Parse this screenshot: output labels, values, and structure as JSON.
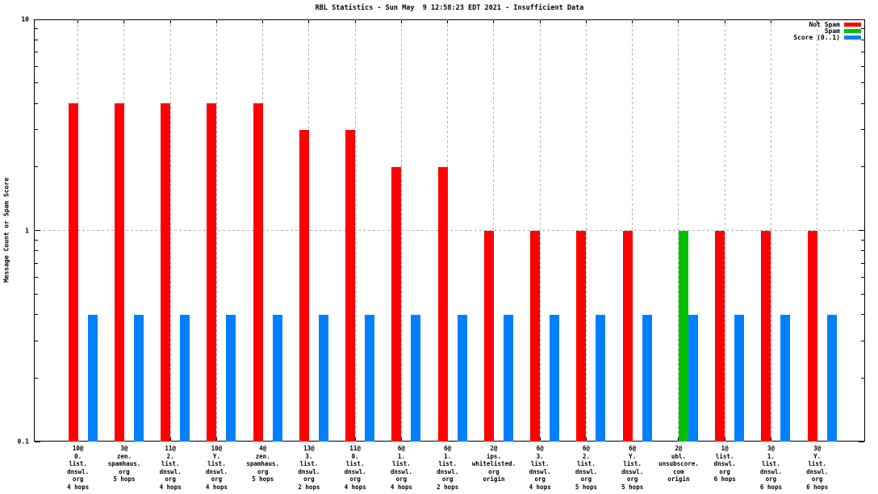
{
  "chart_data": {
    "type": "bar",
    "title": "RBL Statistics - Sun May  9 12:58:23 EDT 2021 - Insufficient Data",
    "ylabel": "Message Count or Spam Score",
    "yscale": "log",
    "ylim": [
      0.1,
      10
    ],
    "yticks": [
      {
        "value": 0.1,
        "label": "0.1"
      },
      {
        "value": 1,
        "label": "1"
      },
      {
        "value": 10,
        "label": "10"
      }
    ],
    "grid": {
      "horizontal_dashed_at": [
        1
      ],
      "vertical_dashed": "every-category"
    },
    "legend_position": "top-right",
    "background_color": "#ffffff",
    "categories": [
      [
        "10@",
        "0.",
        "list.",
        "dnswl.",
        "org",
        "4 hops"
      ],
      [
        "3@",
        "zen.",
        "spamhaus.",
        "org",
        "5 hops"
      ],
      [
        "11@",
        "2.",
        "list.",
        "dnswl.",
        "org",
        "4 hops"
      ],
      [
        "10@",
        "Y.",
        "list.",
        "dnswl.",
        "org",
        "4 hops"
      ],
      [
        "4@",
        "zen.",
        "spamhaus.",
        "org",
        "5 hops"
      ],
      [
        "13@",
        "3.",
        "list.",
        "dnswl.",
        "org",
        "2 hops"
      ],
      [
        "11@",
        "0.",
        "list.",
        "dnswl.",
        "org",
        "4 hops"
      ],
      [
        "6@",
        "1.",
        "list.",
        "dnswl.",
        "org",
        "4 hops"
      ],
      [
        "6@",
        "1.",
        "list.",
        "dnswl.",
        "org",
        "2 hops"
      ],
      [
        "2@",
        "ips.",
        "whitelisted.",
        "org",
        "origin"
      ],
      [
        "6@",
        "3.",
        "list.",
        "dnswl.",
        "org",
        "4 hops"
      ],
      [
        "6@",
        "2.",
        "list.",
        "dnswl.",
        "org",
        "5 hops"
      ],
      [
        "6@",
        "Y.",
        "list.",
        "dnswl.",
        "org",
        "5 hops"
      ],
      [
        "2@",
        "ubl.",
        "unsubscore.",
        "com",
        "origin"
      ],
      [
        "1@",
        "list.",
        "dnswl.",
        "org",
        "6 hops"
      ],
      [
        "3@",
        "1.",
        "list.",
        "dnswl.",
        "org",
        "6 hops"
      ],
      [
        "3@",
        "Y.",
        "list.",
        "dnswl.",
        "org",
        "6 hops"
      ]
    ],
    "series": [
      {
        "name": "Not Spam",
        "color": "#ff0000",
        "values": [
          4,
          4,
          4,
          4,
          4,
          3,
          3,
          2,
          2,
          1,
          1,
          1,
          1,
          null,
          1,
          1,
          1
        ]
      },
      {
        "name": "Spam",
        "color": "#00c000",
        "values": [
          null,
          null,
          null,
          null,
          null,
          null,
          null,
          null,
          null,
          null,
          null,
          null,
          null,
          1,
          null,
          null,
          null
        ]
      },
      {
        "name": "Score (0..1)",
        "color": "#0080ff",
        "values": [
          0.4,
          0.4,
          0.4,
          0.4,
          0.4,
          0.4,
          0.4,
          0.4,
          0.4,
          0.4,
          0.4,
          0.4,
          0.4,
          0.4,
          0.4,
          0.4,
          0.4
        ]
      }
    ]
  }
}
